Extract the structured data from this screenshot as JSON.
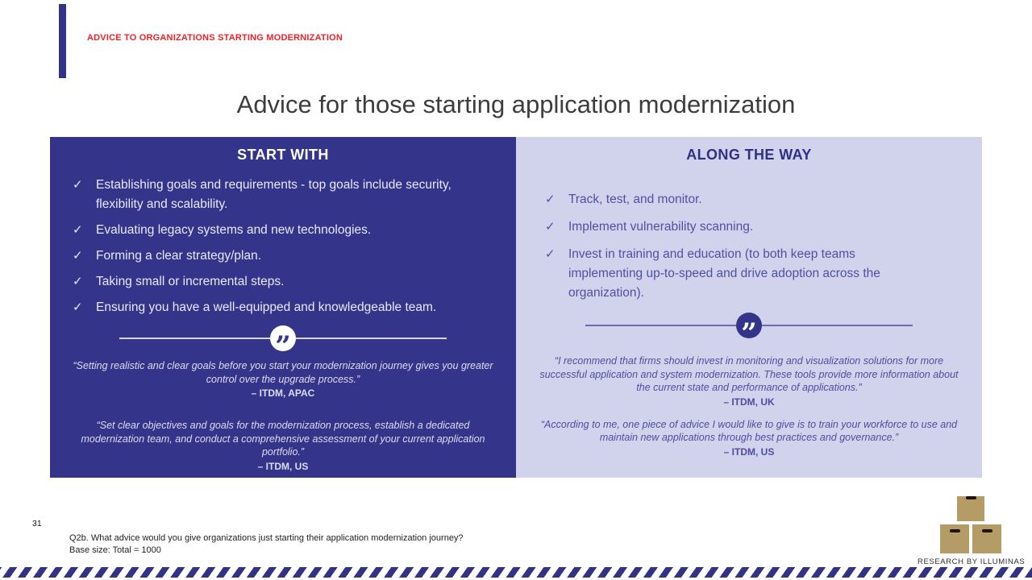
{
  "kicker": "ADVICE TO ORGANIZATIONS STARTING MODERNIZATION",
  "title": "Advice for those starting application modernization",
  "icons": {
    "check": "✓",
    "quote": "”"
  },
  "colors": {
    "panel_dark": "#34348b",
    "panel_light": "#d1d2ec",
    "accent_navy": "#333386",
    "kicker_red": "#ee2226",
    "logo_tan": "#b59c66"
  },
  "panels": {
    "left": {
      "header": "START WITH",
      "bullets": [
        "Establishing goals and requirements - top goals include security, flexibility and scalability.",
        "Evaluating legacy systems and new technologies.",
        "Forming a clear strategy/plan.",
        "Taking small or incremental steps.",
        "Ensuring you have a well-equipped and knowledgeable team."
      ],
      "quotes": [
        {
          "text": "“Setting realistic and clear goals before you start your modernization journey gives you greater control over the upgrade process.”",
          "attribution": "– ITDM, APAC"
        },
        {
          "text": "“Set clear objectives and goals for the modernization process, establish a dedicated modernization team, and conduct a comprehensive assessment of your current application portfolio.”",
          "attribution": "– ITDM, US"
        }
      ]
    },
    "right": {
      "header": "ALONG THE WAY",
      "bullets": [
        "Track, test, and monitor.",
        "Implement vulnerability scanning.",
        "Invest in training and education (to both keep teams implementing up-to-speed and drive adoption across the organization)."
      ],
      "quotes": [
        {
          "text": "“I recommend that firms should invest in monitoring and visualization solutions for more successful application and system modernization. These tools provide more information about the current state and performance of applications.”",
          "attribution": "– ITDM, UK"
        },
        {
          "text": "“According to me, one piece of advice I would like to give is to train your workforce to use and maintain new applications through best practices and governance.”",
          "attribution": "– ITDM, US"
        }
      ]
    }
  },
  "footer": {
    "page_number": "31",
    "footnote_line1": "Q2b. What advice would you give organizations just starting their application modernization journey?",
    "footnote_line2": "Base size: Total = 1000",
    "logo_caption": "RESEARCH BY ILLUMINAS"
  }
}
